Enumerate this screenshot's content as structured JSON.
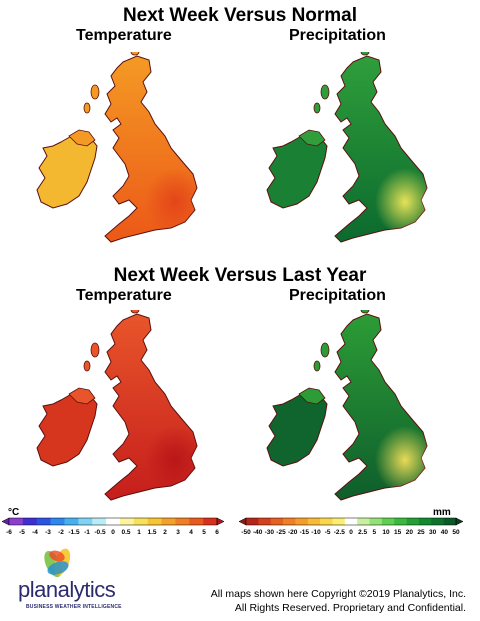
{
  "titles": {
    "top": "Next Week Versus Normal",
    "bottom": "Next Week Versus Last Year",
    "temperature": "Temperature",
    "precipitation": "Precipitation"
  },
  "maps": [
    {
      "panel": "top-temperature",
      "theme": "temp",
      "north": "#f49a24",
      "south": "#ec5818",
      "ireland": "#f4b830",
      "hot": "#e3441a"
    },
    {
      "panel": "top-precipitation",
      "theme": "precip",
      "north": "#2f9e3b",
      "south": "#0c6a2e",
      "ireland": "#1a8034",
      "hot": "#f2e85a"
    },
    {
      "panel": "bottom-temperature",
      "theme": "temp",
      "north": "#e8552a",
      "south": "#c61e1c",
      "ireland": "#d6361e",
      "hot": "#b81518"
    },
    {
      "panel": "bottom-precipitation",
      "theme": "precip",
      "north": "#2c9c36",
      "south": "#0e5e2c",
      "ireland": "#10652e",
      "hot": "#f4e05a"
    }
  ],
  "legend_temp": {
    "unit": "°C",
    "labels": [
      "-6",
      "-5",
      "-4",
      "-3",
      "-2",
      "-1.5",
      "-1",
      "-0.5",
      "0",
      "0.5",
      "1",
      "1.5",
      "2",
      "3",
      "4",
      "5",
      "6"
    ],
    "colors": [
      "#6b1fa8",
      "#8a3fd1",
      "#3d2fd1",
      "#2b54e4",
      "#2f86ee",
      "#46b0f0",
      "#7fd2f4",
      "#b9ecf6",
      "#ffffff",
      "#fbf3a0",
      "#f8e15a",
      "#f7c434",
      "#f4a12b",
      "#ef7f26",
      "#ea5a1f",
      "#d7301c",
      "#b5141a"
    ]
  },
  "legend_precip": {
    "unit": "mm",
    "labels": [
      "-50",
      "-40",
      "-30",
      "-25",
      "-20",
      "-15",
      "-10",
      "-5",
      "-2.5",
      "0",
      "2.5",
      "5",
      "10",
      "15",
      "20",
      "25",
      "30",
      "40",
      "50"
    ],
    "colors": [
      "#8e1a12",
      "#b3261a",
      "#d3411c",
      "#e6601f",
      "#f07f25",
      "#f59d2c",
      "#f8bb38",
      "#fad64c",
      "#fcee74",
      "#ffffff",
      "#c8f0a0",
      "#92e278",
      "#5fcf52",
      "#3ab83f",
      "#22a036",
      "#138a30",
      "#0c722c",
      "#0a5a28",
      "#0b3f22"
    ]
  },
  "branding": {
    "logo": "planalytics",
    "tagline": "BUSINESS WEATHER INTELLIGENCE",
    "copyright_line1": "All maps shown here Copyright ©2019 Planalytics, Inc.",
    "copyright_line2": "All Rights Reserved. Proprietary and Confidential."
  }
}
